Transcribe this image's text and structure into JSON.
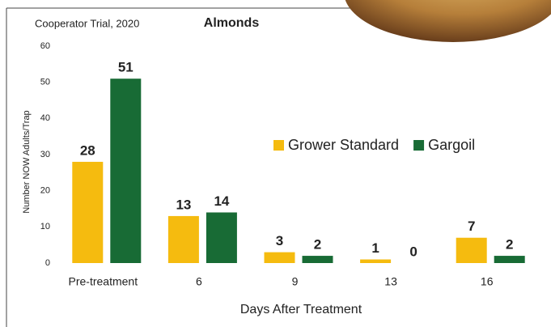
{
  "chart_data": {
    "type": "bar",
    "title": "Almonds",
    "subtitle": "Cooperator Trial, 2020",
    "y_label": "Number NOW Adults/Trap",
    "x_label": "Days After Treatment",
    "categories": [
      "Pre-treatment",
      "6",
      "9",
      "13",
      "16"
    ],
    "series": [
      {
        "name": "Grower Standard",
        "color": "#f5bb0f",
        "values": [
          28,
          13,
          3,
          1,
          7
        ]
      },
      {
        "name": "Gargoil",
        "color": "#186b35",
        "values": [
          51,
          14,
          2,
          0,
          2
        ]
      }
    ],
    "ylim": [
      0,
      60
    ],
    "yticks": [
      0,
      10,
      20,
      30,
      40,
      50,
      60
    ],
    "grid": false
  }
}
